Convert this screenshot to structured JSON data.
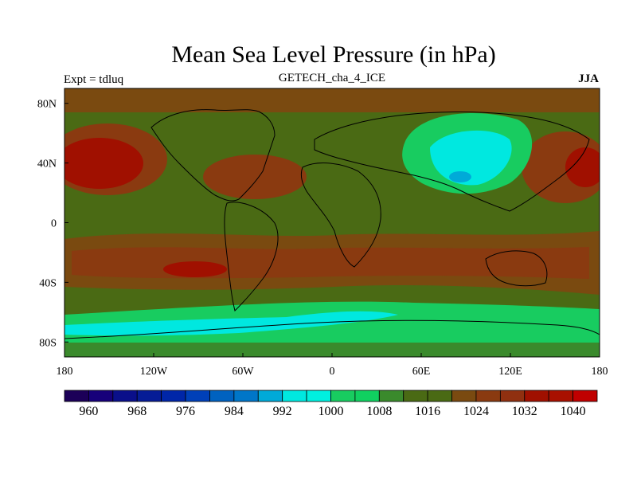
{
  "figure": {
    "title": "Mean Sea Level Pressure (in hPa)",
    "subtitle": "GETECH_cha_4_ICE",
    "left_label": "Expt = tdluq",
    "right_label": "JJA"
  },
  "chart_data": {
    "type": "heatmap",
    "title": "Mean Sea Level Pressure (in hPa)",
    "xlabel": "",
    "ylabel": "",
    "xlim": [
      -180,
      180
    ],
    "ylim": [
      -90,
      90
    ],
    "lon_ticks": [
      {
        "value": -180,
        "label": "180"
      },
      {
        "value": -120,
        "label": "120W"
      },
      {
        "value": -60,
        "label": "60W"
      },
      {
        "value": 0,
        "label": "0"
      },
      {
        "value": 60,
        "label": "60E"
      },
      {
        "value": 120,
        "label": "120E"
      },
      {
        "value": 180,
        "label": "180"
      }
    ],
    "lat_ticks": [
      {
        "value": 80,
        "label": "80N"
      },
      {
        "value": 40,
        "label": "40N"
      },
      {
        "value": 0,
        "label": "0"
      },
      {
        "value": -40,
        "label": "40S"
      },
      {
        "value": -80,
        "label": "80S"
      }
    ],
    "colorbar": {
      "range": [
        956,
        1044
      ],
      "step": 4,
      "labels": [
        "960",
        "968",
        "976",
        "984",
        "992",
        "1000",
        "1008",
        "1016",
        "1024",
        "1032",
        "1040"
      ],
      "label_values": [
        960,
        968,
        976,
        984,
        992,
        1000,
        1008,
        1016,
        1024,
        1032,
        1040
      ],
      "colors": [
        "#1c0058",
        "#17007a",
        "#0a0f8a",
        "#061c96",
        "#0026a8",
        "#0040b8",
        "#0062c0",
        "#0076c8",
        "#00aad8",
        "#00e8e0",
        "#00f0e0",
        "#18cc60",
        "#10d060",
        "#3a8a2c",
        "#4a6a14",
        "#4a6a14",
        "#7a4a10",
        "#8a3a10",
        "#903010",
        "#a01000",
        "#a81000",
        "#c00000"
      ]
    },
    "regions": [
      {
        "name": "north-pacific-high",
        "value": 1028
      },
      {
        "name": "north-atlantic-high",
        "value": 1026
      },
      {
        "name": "south-pacific-high",
        "value": 1030
      },
      {
        "name": "south-atlantic-high",
        "value": 1026
      },
      {
        "name": "south-indian-high",
        "value": 1026
      },
      {
        "name": "asian-low",
        "value": 998
      },
      {
        "name": "southern-ocean-trough",
        "value": 994
      }
    ]
  }
}
